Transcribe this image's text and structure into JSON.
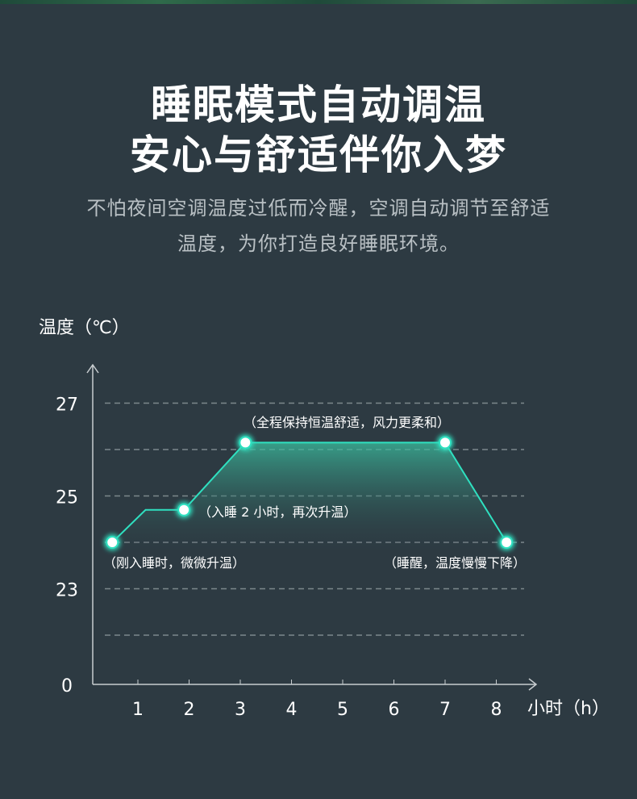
{
  "header": {
    "title_line1": "睡眠模式自动调温",
    "title_line2": "安心与舒适伴你入梦",
    "subtitle_line1": "不怕夜间空调温度过低而冷醒，空调自动调节至舒适",
    "subtitle_line2": "温度，为你打造良好睡眠环境。"
  },
  "chart_data": {
    "type": "line",
    "title": "",
    "ylabel": "温度（℃）",
    "xlabel": "小时（h）",
    "x_ticks": [
      "1",
      "2",
      "3",
      "4",
      "5",
      "6",
      "7",
      "8"
    ],
    "y_ticks": [
      "27",
      "25",
      "23"
    ],
    "y_axis_origin_label": "0",
    "y_gridlines": [
      22,
      23,
      24,
      25,
      26,
      27
    ],
    "xlim": [
      0,
      8.6
    ],
    "grid": "dashed horizontal",
    "series": [
      {
        "points": [
          [
            0.5,
            24
          ],
          [
            1.15,
            24.7
          ],
          [
            1.9,
            24.7
          ],
          [
            3.1,
            26.15
          ],
          [
            7.0,
            26.15
          ],
          [
            8.2,
            24
          ]
        ],
        "marker_points": [
          0,
          2,
          3,
          4,
          5
        ],
        "color": "#2fe0c0",
        "fill": "area gradient"
      }
    ],
    "annotations": [
      {
        "text": "（刚入睡时，微微升温）",
        "x": 0.5,
        "y": 24
      },
      {
        "text": "（入睡 2 小时，再次升温）",
        "x": 1.9,
        "y": 24.7
      },
      {
        "text": "（全程保持恒温舒适，风力更柔和）",
        "x": 5.0,
        "y": 26.15
      },
      {
        "text": "（睡醒，温度慢慢下降）",
        "x": 8.2,
        "y": 24
      }
    ]
  }
}
